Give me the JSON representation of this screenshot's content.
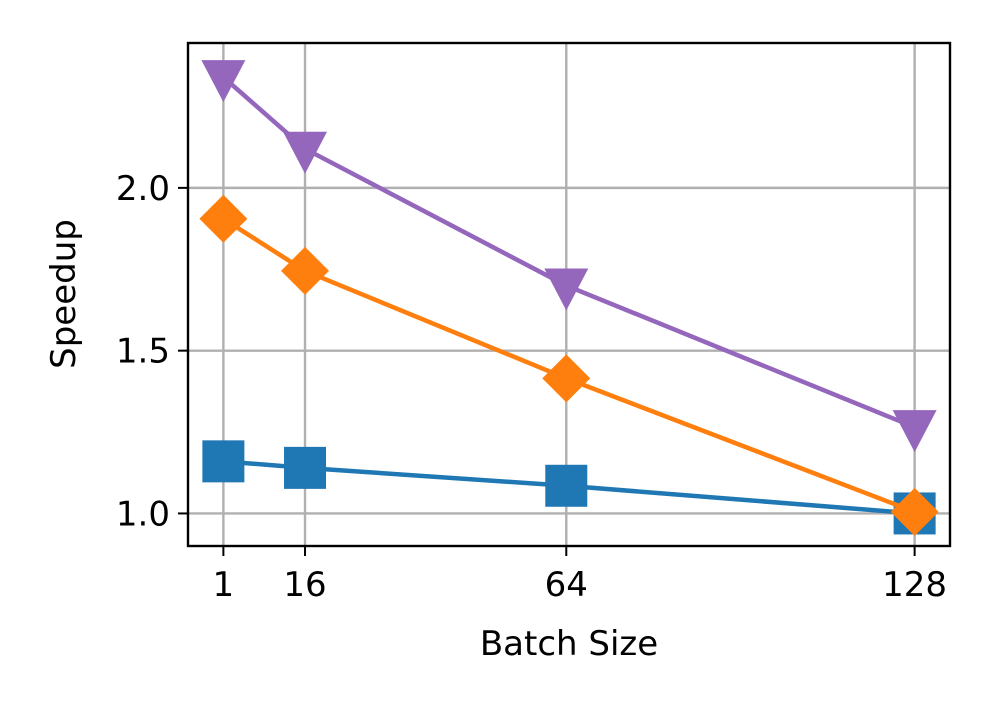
{
  "chart_data": {
    "type": "line",
    "xlabel": "Batch Size",
    "ylabel": "Speedup",
    "x": [
      1,
      16,
      64,
      128
    ],
    "x_tick_labels": [
      "1",
      "16",
      "64",
      "128"
    ],
    "y_ticks": [
      1.0,
      1.5,
      2.0
    ],
    "y_tick_labels": [
      "1.0",
      "1.5",
      "2.0"
    ],
    "xlim": [
      -5.5,
      134.5
    ],
    "ylim": [
      0.9,
      2.445
    ],
    "grid": true,
    "legend": "none",
    "series": [
      {
        "color": "#1f77b4",
        "marker": "square",
        "values": [
          1.16,
          1.14,
          1.085,
          1.0
        ]
      },
      {
        "color": "#ff7f0e",
        "marker": "diamond",
        "values": [
          1.905,
          1.745,
          1.415,
          1.005
        ]
      },
      {
        "color": "#9467bd",
        "marker": "triangle-down",
        "values": [
          2.34,
          2.12,
          1.7,
          1.265
        ]
      }
    ]
  }
}
